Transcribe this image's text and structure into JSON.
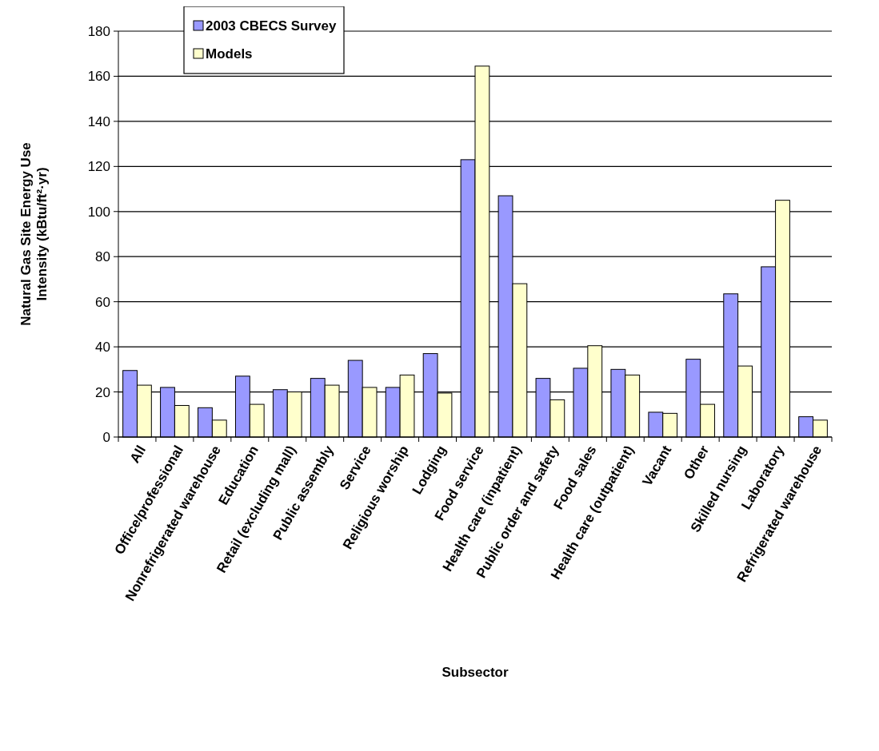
{
  "chart_data": {
    "type": "bar",
    "xlabel": "Subsector",
    "ylabel": "Natural Gas Site Energy Use Intensity (kBtu/ft²·yr)",
    "categories": [
      "All",
      "Office/professional",
      "Nonrefrigerated warehouse",
      "Education",
      "Retail (excluding mall)",
      "Public assembly",
      "Service",
      "Religious worship",
      "Lodging",
      "Food service",
      "Health care (inpatient)",
      "Public order and safety",
      "Food sales",
      "Health care (outpatient)",
      "Vacant",
      "Other",
      "Skilled nursing",
      "Laboratory",
      "Refrigerated warehouse"
    ],
    "series": [
      {
        "name": "2003 CBECS Survey",
        "color": "#9999ff",
        "values": [
          29.5,
          22,
          13,
          27,
          21,
          26,
          34,
          22,
          37,
          123,
          107,
          26,
          30.5,
          30,
          11,
          34.5,
          63.5,
          75.5,
          9
        ]
      },
      {
        "name": "Models",
        "color": "#ffffcc",
        "values": [
          23,
          14,
          7.5,
          14.5,
          20,
          23,
          22,
          27.5,
          19.5,
          164.5,
          68,
          16.5,
          40.5,
          27.5,
          10.5,
          14.5,
          31.5,
          105,
          7.5
        ]
      }
    ],
    "ylim": [
      0,
      180
    ],
    "yticks": [
      0,
      20,
      40,
      60,
      80,
      100,
      120,
      140,
      160,
      180
    ],
    "grid": "y",
    "legend": "top left"
  }
}
